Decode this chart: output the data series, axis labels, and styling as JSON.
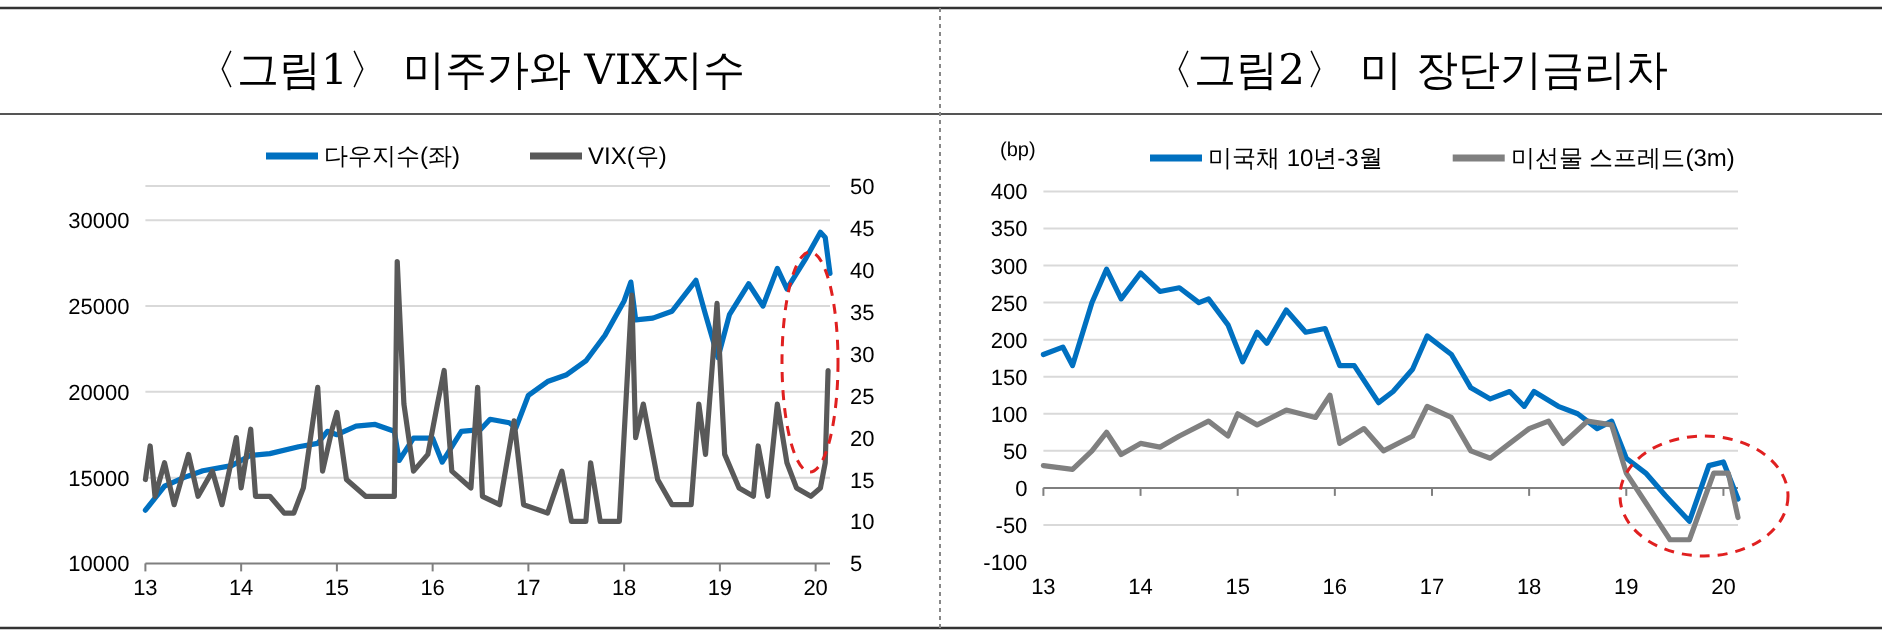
{
  "chart_data": [
    {
      "type": "line",
      "title": "〈그림1〉 미주가와 VIX지수",
      "grid": "y",
      "legend": "top",
      "xlim": [
        2013,
        2020.15
      ],
      "xticks": [
        {
          "value": 2013,
          "label": "13"
        },
        {
          "value": 2014,
          "label": "14"
        },
        {
          "value": 2015,
          "label": "15"
        },
        {
          "value": 2016,
          "label": "16"
        },
        {
          "value": 2017,
          "label": "17"
        },
        {
          "value": 2018,
          "label": "18"
        },
        {
          "value": 2019,
          "label": "19"
        },
        {
          "value": 2020,
          "label": "20"
        }
      ],
      "ylim": [
        10000,
        32000
      ],
      "yticks": [
        10000,
        15000,
        20000,
        25000,
        30000
      ],
      "y2lim": [
        5,
        50
      ],
      "y2ticks": [
        5,
        10,
        15,
        20,
        25,
        30,
        35,
        40,
        45,
        50
      ],
      "series": [
        {
          "name": "다우지수(좌)",
          "color": "#0070c0",
          "x": [
            2013.0,
            2013.2,
            2013.4,
            2013.6,
            2013.9,
            2014.1,
            2014.3,
            2014.6,
            2014.8,
            2014.9,
            2015.0,
            2015.2,
            2015.4,
            2015.6,
            2015.65,
            2015.8,
            2016.0,
            2016.1,
            2016.3,
            2016.5,
            2016.6,
            2016.8,
            2016.87,
            2017.0,
            2017.2,
            2017.4,
            2017.6,
            2017.8,
            2018.0,
            2018.07,
            2018.12,
            2018.3,
            2018.5,
            2018.75,
            2018.85,
            2018.98,
            2019.1,
            2019.3,
            2019.45,
            2019.6,
            2019.7,
            2019.9,
            2020.05,
            2020.1,
            2020.15
          ],
          "values": [
            13100,
            14500,
            15000,
            15400,
            15700,
            16300,
            16400,
            16800,
            17000,
            17700,
            17500,
            18000,
            18100,
            17700,
            16000,
            17300,
            17300,
            15900,
            17700,
            17800,
            18400,
            18200,
            17900,
            19800,
            20600,
            21000,
            21800,
            23300,
            25300,
            26400,
            24200,
            24300,
            24700,
            26500,
            24500,
            22000,
            24500,
            26300,
            25000,
            27200,
            26000,
            27800,
            29300,
            29000,
            26900
          ]
        },
        {
          "name": "VIX(우)",
          "color": "#595959",
          "axis": "y2",
          "x": [
            2013.0,
            2013.05,
            2013.1,
            2013.2,
            2013.3,
            2013.45,
            2013.55,
            2013.7,
            2013.8,
            2013.95,
            2014.0,
            2014.1,
            2014.15,
            2014.3,
            2014.45,
            2014.55,
            2014.65,
            2014.8,
            2014.85,
            2014.95,
            2015.0,
            2015.1,
            2015.3,
            2015.5,
            2015.6,
            2015.63,
            2015.7,
            2015.8,
            2015.95,
            2016.05,
            2016.12,
            2016.2,
            2016.4,
            2016.47,
            2016.52,
            2016.7,
            2016.85,
            2016.95,
            2017.2,
            2017.35,
            2017.45,
            2017.6,
            2017.65,
            2017.75,
            2017.95,
            2018.08,
            2018.12,
            2018.2,
            2018.35,
            2018.5,
            2018.7,
            2018.78,
            2018.85,
            2018.97,
            2019.05,
            2019.2,
            2019.35,
            2019.4,
            2019.5,
            2019.6,
            2019.7,
            2019.8,
            2019.95,
            2020.05,
            2020.1,
            2020.13
          ],
          "values": [
            15,
            19,
            13,
            17,
            12,
            18,
            13,
            16,
            12,
            20,
            14,
            21,
            13,
            13,
            11,
            11,
            14,
            26,
            16,
            21,
            23,
            15,
            13,
            13,
            13,
            41,
            24,
            16,
            18,
            24,
            28,
            16,
            14,
            26,
            13,
            12,
            22,
            12,
            11,
            16,
            10,
            10,
            17,
            10,
            10,
            37,
            20,
            24,
            15,
            12,
            12,
            24,
            18,
            36,
            18,
            14,
            13,
            19,
            13,
            24,
            17,
            14,
            13,
            14,
            17,
            28
          ]
        }
      ]
    },
    {
      "type": "line",
      "title": "〈그림2〉 미 장단기금리차",
      "ylabel": "(bp)",
      "grid": "y",
      "legend": "top",
      "xlim": [
        2013,
        2020.15
      ],
      "xticks": [
        {
          "value": 2013,
          "label": "13"
        },
        {
          "value": 2014,
          "label": "14"
        },
        {
          "value": 2015,
          "label": "15"
        },
        {
          "value": 2016,
          "label": "16"
        },
        {
          "value": 2017,
          "label": "17"
        },
        {
          "value": 2018,
          "label": "18"
        },
        {
          "value": 2019,
          "label": "19"
        },
        {
          "value": 2020,
          "label": "20"
        }
      ],
      "ylim": [
        -100,
        400
      ],
      "yticks": [
        -100,
        -50,
        0,
        50,
        100,
        150,
        200,
        250,
        300,
        350,
        400
      ],
      "series": [
        {
          "name": "미국채 10년-3월",
          "color": "#0070c0",
          "x": [
            2013.0,
            2013.2,
            2013.3,
            2013.5,
            2013.65,
            2013.8,
            2014.0,
            2014.2,
            2014.4,
            2014.6,
            2014.7,
            2014.9,
            2015.05,
            2015.2,
            2015.3,
            2015.5,
            2015.7,
            2015.9,
            2016.05,
            2016.2,
            2016.45,
            2016.6,
            2016.8,
            2016.95,
            2017.2,
            2017.4,
            2017.6,
            2017.8,
            2017.95,
            2018.05,
            2018.3,
            2018.5,
            2018.7,
            2018.85,
            2019.0,
            2019.2,
            2019.4,
            2019.65,
            2019.85,
            2020.0,
            2020.15
          ],
          "values": [
            180,
            190,
            165,
            250,
            295,
            255,
            290,
            265,
            270,
            250,
            255,
            220,
            170,
            210,
            195,
            240,
            210,
            215,
            165,
            165,
            115,
            130,
            160,
            205,
            180,
            135,
            120,
            130,
            110,
            130,
            110,
            100,
            80,
            90,
            40,
            20,
            -10,
            -45,
            30,
            35,
            -15
          ]
        },
        {
          "name": "미선물 스프레드(3m)",
          "color": "#808080",
          "x": [
            2013.0,
            2013.3,
            2013.5,
            2013.65,
            2013.8,
            2014.0,
            2014.2,
            2014.4,
            2014.7,
            2014.9,
            2015.0,
            2015.2,
            2015.5,
            2015.8,
            2015.95,
            2016.05,
            2016.3,
            2016.5,
            2016.8,
            2016.95,
            2017.2,
            2017.4,
            2017.6,
            2017.8,
            2018.0,
            2018.2,
            2018.35,
            2018.6,
            2018.85,
            2019.0,
            2019.2,
            2019.45,
            2019.65,
            2019.9,
            2020.05,
            2020.15
          ],
          "values": [
            30,
            25,
            50,
            75,
            45,
            60,
            55,
            70,
            90,
            70,
            100,
            85,
            105,
            95,
            125,
            60,
            80,
            50,
            70,
            110,
            95,
            50,
            40,
            60,
            80,
            90,
            60,
            90,
            85,
            20,
            -20,
            -70,
            -70,
            20,
            20,
            -40
          ]
        }
      ]
    }
  ]
}
